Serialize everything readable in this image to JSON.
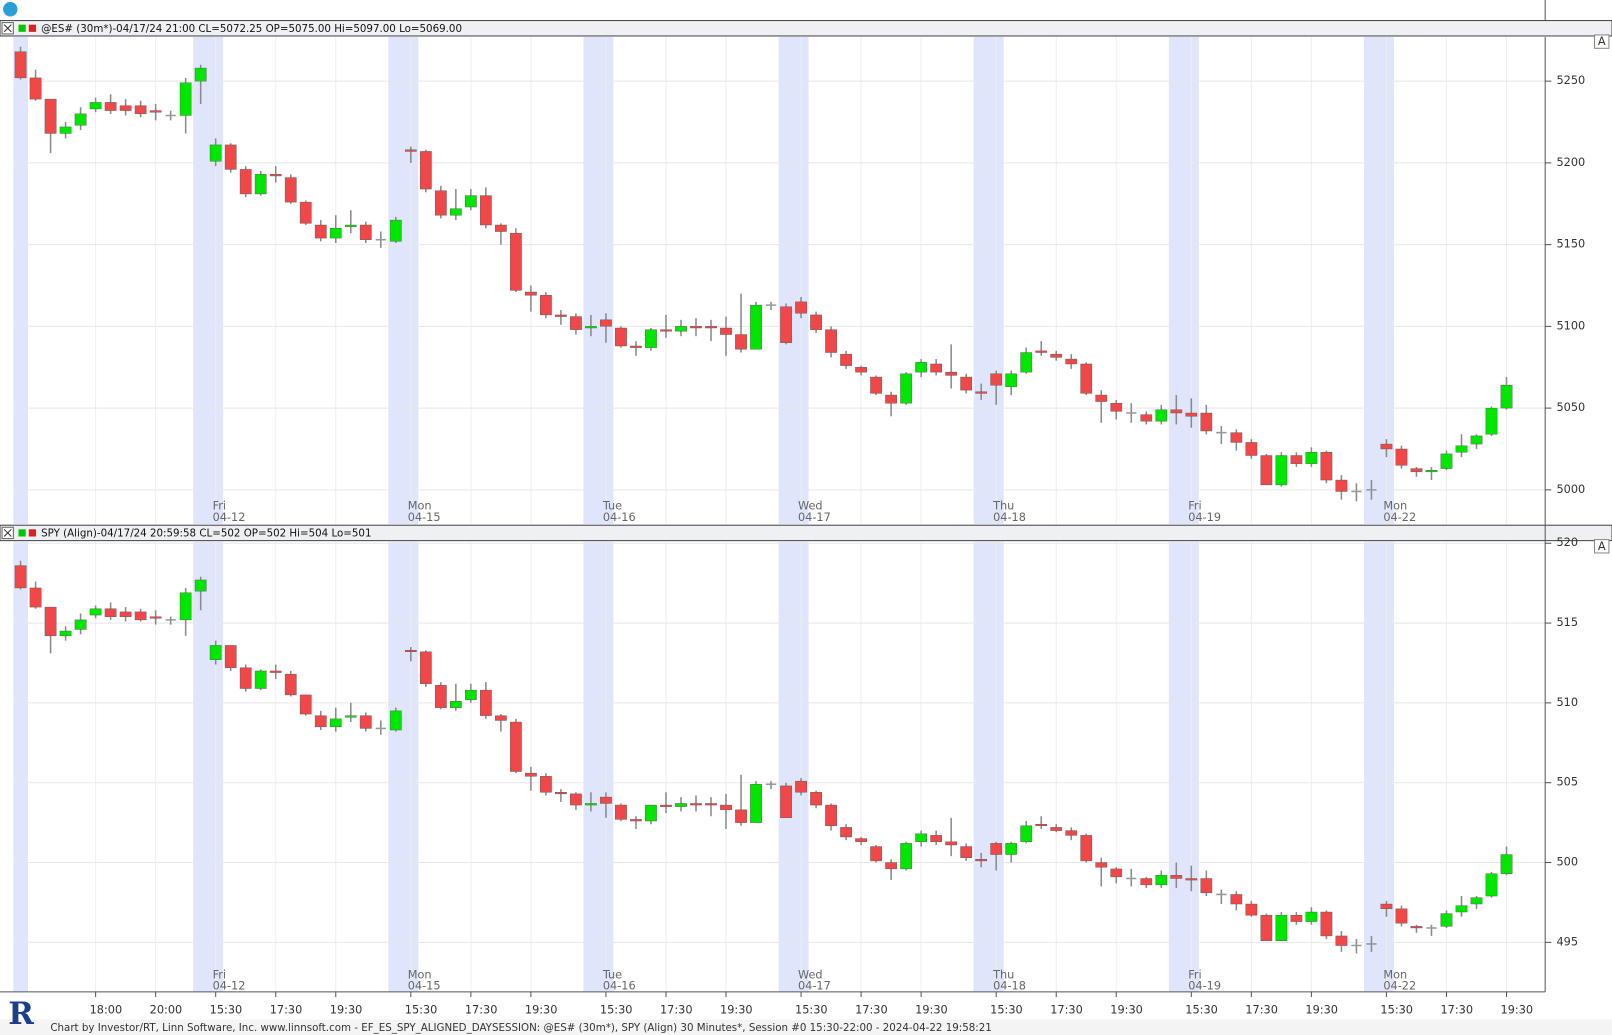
{
  "button_label": "A",
  "footer": "Chart by Investor/RT, Linn Software, Inc. www.linnsoft.com - EF_ES_SPY_ALIGNED_DAYSESSION: @ES# (30m*), SPY (Align) 30 Minutes*, Session #0 15:30-22:00 - 2024-04-22 19:58:21",
  "chart_data": [
    {
      "type": "candlestick",
      "title": "@ES# (30m*)-04/17/24 21:00 CL=5072.25 OP=5075.00 Hi=5097.00 Lo=5069.00",
      "up_color": "#00e600",
      "down_color": "#f04848",
      "doji_color": "#999999",
      "band_color": "#dfe6fb",
      "grid": true,
      "ylim": [
        4979,
        5277
      ],
      "yticks": [
        5000,
        5050,
        5100,
        5150,
        5200,
        5250
      ],
      "weekdays": [
        null,
        null,
        null,
        null,
        null,
        null,
        null,
        null,
        null,
        null,
        null,
        null,
        null,
        "Fri",
        null,
        null,
        null,
        null,
        null,
        null,
        null,
        null,
        null,
        null,
        null,
        null,
        "Mon",
        null,
        null,
        null,
        null,
        null,
        null,
        null,
        null,
        null,
        null,
        null,
        null,
        "Tue",
        null,
        null,
        null,
        null,
        null,
        null,
        null,
        null,
        null,
        null,
        null,
        null,
        "Wed",
        null,
        null,
        null,
        null,
        null,
        null,
        null,
        null,
        null,
        null,
        null,
        null,
        "Thu",
        null,
        null,
        null,
        null,
        null,
        null,
        null,
        null,
        null,
        null,
        null,
        null,
        "Fri",
        null,
        null,
        null,
        null,
        null,
        null,
        null,
        null,
        null,
        null,
        null,
        null,
        "Mon",
        null,
        null,
        null,
        null,
        null,
        null,
        null,
        null
      ],
      "dates": [
        null,
        null,
        null,
        null,
        null,
        null,
        null,
        null,
        null,
        null,
        null,
        null,
        null,
        "04-12",
        null,
        null,
        null,
        null,
        null,
        null,
        null,
        null,
        null,
        null,
        null,
        null,
        "04-15",
        null,
        null,
        null,
        null,
        null,
        null,
        null,
        null,
        null,
        null,
        null,
        null,
        "04-16",
        null,
        null,
        null,
        null,
        null,
        null,
        null,
        null,
        null,
        null,
        null,
        null,
        "04-17",
        null,
        null,
        null,
        null,
        null,
        null,
        null,
        null,
        null,
        null,
        null,
        null,
        "04-18",
        null,
        null,
        null,
        null,
        null,
        null,
        null,
        null,
        null,
        null,
        null,
        null,
        "04-19",
        null,
        null,
        null,
        null,
        null,
        null,
        null,
        null,
        null,
        null,
        null,
        null,
        "04-22",
        null,
        null,
        null,
        null,
        null,
        null,
        null,
        null
      ],
      "open": [
        5268,
        5252,
        5239,
        5218,
        5223,
        5233,
        5237,
        5235,
        5235,
        5232,
        5229,
        5229,
        5250,
        5201,
        5211,
        5196,
        5181,
        5193,
        5191,
        5176,
        5162,
        5154,
        5161,
        5162,
        5153,
        5152,
        5208,
        5207,
        5183,
        5168,
        5173,
        5180,
        5162,
        5157,
        5121,
        5119,
        5107,
        5106,
        5099,
        5104,
        5099,
        5088,
        5087,
        5098,
        5097,
        5100,
        5100,
        5099,
        5095,
        5086,
        5113,
        5112,
        5115,
        5107,
        5098,
        5083,
        5075,
        5069,
        5058,
        5053,
        5072,
        5077,
        5072,
        5069,
        5060,
        5071,
        5063,
        5072,
        5085,
        5083,
        5080,
        5077,
        5058,
        5053,
        5047,
        5046,
        5042,
        5049,
        5047,
        5047,
        5035,
        5035,
        5029,
        5021,
        5003,
        5021,
        5016,
        5023,
        5006,
        4999,
        5000,
        5028,
        5025,
        5013,
        5011,
        5013,
        5023,
        5028,
        5034,
        5050
      ],
      "high": [
        5271,
        5257,
        5239,
        5225,
        5234,
        5240,
        5242,
        5239,
        5238,
        5236,
        5232,
        5252,
        5260,
        5215,
        5212,
        5198,
        5195,
        5198,
        5193,
        5177,
        5165,
        5168,
        5171,
        5164,
        5158,
        5167,
        5210,
        5208,
        5186,
        5184,
        5184,
        5185,
        5163,
        5160,
        5125,
        5121,
        5110,
        5108,
        5107,
        5108,
        5100,
        5091,
        5099,
        5107,
        5104,
        5105,
        5104,
        5106,
        5120,
        5115,
        5115,
        5114,
        5118,
        5109,
        5100,
        5085,
        5076,
        5070,
        5060,
        5072,
        5080,
        5080,
        5089,
        5071,
        5065,
        5073,
        5073,
        5087,
        5091,
        5085,
        5083,
        5078,
        5061,
        5055,
        5053,
        5048,
        5052,
        5058,
        5056,
        5052,
        5039,
        5037,
        5031,
        5022,
        5023,
        5023,
        5026,
        5024,
        5009,
        5004,
        5006,
        5031,
        5027,
        5014,
        5014,
        5024,
        5034,
        5034,
        5051,
        5069
      ],
      "low": [
        5251,
        5238,
        5206,
        5215,
        5220,
        5231,
        5230,
        5229,
        5228,
        5226,
        5226,
        5218,
        5236,
        5198,
        5194,
        5179,
        5180,
        5188,
        5175,
        5162,
        5152,
        5151,
        5157,
        5151,
        5148,
        5151,
        5200,
        5182,
        5166,
        5165,
        5171,
        5160,
        5150,
        5121,
        5109,
        5105,
        5101,
        5095,
        5094,
        5090,
        5087,
        5082,
        5085,
        5093,
        5094,
        5094,
        5091,
        5082,
        5084,
        5086,
        5110,
        5089,
        5105,
        5096,
        5081,
        5074,
        5070,
        5058,
        5045,
        5052,
        5069,
        5070,
        5062,
        5059,
        5055,
        5052,
        5058,
        5071,
        5082,
        5079,
        5074,
        5058,
        5041,
        5043,
        5041,
        5040,
        5040,
        5040,
        5038,
        5034,
        5028,
        5024,
        5019,
        5003,
        5002,
        5014,
        5014,
        5004,
        4994,
        4993,
        4994,
        5020,
        5013,
        5008,
        5006,
        5012,
        5020,
        5025,
        5033,
        5049
      ],
      "close": [
        5252,
        5239,
        5218,
        5222,
        5230,
        5237,
        5232,
        5232,
        5230,
        5231,
        5229,
        5249,
        5258,
        5211,
        5196,
        5181,
        5193,
        5192,
        5176,
        5163,
        5154,
        5160,
        5162,
        5153,
        5153,
        5165,
        5207,
        5184,
        5168,
        5172,
        5180,
        5162,
        5158,
        5122,
        5119,
        5107,
        5106,
        5098,
        5100,
        5100,
        5088,
        5087,
        5098,
        5097,
        5100,
        5099,
        5099,
        5095,
        5086,
        5113,
        5113,
        5090,
        5108,
        5098,
        5084,
        5076,
        5072,
        5059,
        5053,
        5071,
        5078,
        5072,
        5070,
        5061,
        5059,
        5064,
        5071,
        5084,
        5084,
        5081,
        5077,
        5059,
        5054,
        5048,
        5047,
        5042,
        5049,
        5047,
        5045,
        5036,
        5035,
        5029,
        5021,
        5003,
        5021,
        5016,
        5023,
        5006,
        4999,
        4999,
        5000,
        5025,
        5015,
        5011,
        5012,
        5022,
        5027,
        5033,
        5050,
        5064
      ]
    },
    {
      "type": "candlestick",
      "title": "SPY (Align)-04/17/24 20:59:58 CL=502 OP=502 Hi=504 Lo=501",
      "up_color": "#00e600",
      "down_color": "#f04848",
      "doji_color": "#999999",
      "band_color": "#dfe6fb",
      "grid": true,
      "ylim": [
        491.9,
        520.1
      ],
      "yticks": [
        495,
        500,
        505,
        510,
        515,
        520
      ],
      "categories": [
        null,
        null,
        null,
        null,
        null,
        "18:00",
        null,
        null,
        null,
        "20:00",
        null,
        null,
        null,
        "15:30",
        null,
        null,
        null,
        "17:30",
        null,
        null,
        null,
        "19:30",
        null,
        null,
        null,
        null,
        "15:30",
        null,
        null,
        null,
        "17:30",
        null,
        null,
        null,
        "19:30",
        null,
        null,
        null,
        null,
        "15:30",
        null,
        null,
        null,
        "17:30",
        null,
        null,
        null,
        "19:30",
        null,
        null,
        null,
        null,
        "15:30",
        null,
        null,
        null,
        "17:30",
        null,
        null,
        null,
        "19:30",
        null,
        null,
        null,
        null,
        "15:30",
        null,
        null,
        null,
        "17:30",
        null,
        null,
        null,
        "19:30",
        null,
        null,
        null,
        null,
        "15:30",
        null,
        null,
        null,
        "17:30",
        null,
        null,
        null,
        "19:30",
        null,
        null,
        null,
        null,
        "15:30",
        null,
        null,
        null,
        "17:30",
        null,
        null,
        null,
        "19:30"
      ],
      "open": [
        518.6,
        517.2,
        516.0,
        514.2,
        514.6,
        515.5,
        515.9,
        515.7,
        515.7,
        515.4,
        515.2,
        515.2,
        517.0,
        512.7,
        513.6,
        512.2,
        510.9,
        512.0,
        511.8,
        510.5,
        509.2,
        508.5,
        509.1,
        509.2,
        508.4,
        508.3,
        513.3,
        513.2,
        511.1,
        509.7,
        510.2,
        510.8,
        509.2,
        508.8,
        505.6,
        505.4,
        504.4,
        504.3,
        503.6,
        504.1,
        503.6,
        502.7,
        502.6,
        503.6,
        503.5,
        503.7,
        503.7,
        503.6,
        503.3,
        502.5,
        504.9,
        504.8,
        505.1,
        504.4,
        503.6,
        502.2,
        501.5,
        501.0,
        500.0,
        499.6,
        501.3,
        501.7,
        501.3,
        501.0,
        500.2,
        501.2,
        500.5,
        501.3,
        502.4,
        502.2,
        502.0,
        501.7,
        500.0,
        499.6,
        499.0,
        499.0,
        498.6,
        499.2,
        499.0,
        499.0,
        498.0,
        498.0,
        497.4,
        496.7,
        495.1,
        496.7,
        496.3,
        496.9,
        495.4,
        494.8,
        494.9,
        497.4,
        497.1,
        496.0,
        495.9,
        496.0,
        496.9,
        497.4,
        497.9,
        499.3
      ],
      "high": [
        518.9,
        517.6,
        516.0,
        514.8,
        515.6,
        516.1,
        516.3,
        516.0,
        515.9,
        515.8,
        515.4,
        517.2,
        517.9,
        513.9,
        513.6,
        512.4,
        512.1,
        512.4,
        512.0,
        510.5,
        509.5,
        509.7,
        510.0,
        509.4,
        508.9,
        509.7,
        513.5,
        513.3,
        511.3,
        511.2,
        511.2,
        511.3,
        509.3,
        509.0,
        506.0,
        505.6,
        504.6,
        504.4,
        504.4,
        504.4,
        503.7,
        502.9,
        503.6,
        504.4,
        504.1,
        504.2,
        504.1,
        504.3,
        505.5,
        505.1,
        505.1,
        505.0,
        505.3,
        504.5,
        503.7,
        502.4,
        501.6,
        501.1,
        500.2,
        501.3,
        502.0,
        502.0,
        502.8,
        501.2,
        500.6,
        501.3,
        501.3,
        502.6,
        502.9,
        502.4,
        502.2,
        501.8,
        500.3,
        499.7,
        499.6,
        499.1,
        499.5,
        500.0,
        499.8,
        499.5,
        498.3,
        498.2,
        497.6,
        496.8,
        496.9,
        496.9,
        497.2,
        497.0,
        495.7,
        495.2,
        495.4,
        497.6,
        497.3,
        496.1,
        496.1,
        497.0,
        497.9,
        497.9,
        499.4,
        501.0
      ],
      "low": [
        517.1,
        515.9,
        513.1,
        513.9,
        514.3,
        515.3,
        515.2,
        515.1,
        515.1,
        514.9,
        514.9,
        514.2,
        515.8,
        512.4,
        512.0,
        510.7,
        510.8,
        511.5,
        510.4,
        509.2,
        508.3,
        508.2,
        508.8,
        508.2,
        508.0,
        508.2,
        512.6,
        511.0,
        509.6,
        509.5,
        510.0,
        509.0,
        508.2,
        505.6,
        504.5,
        504.2,
        503.8,
        503.3,
        503.2,
        502.8,
        502.6,
        502.1,
        502.4,
        503.1,
        503.2,
        503.2,
        502.9,
        502.1,
        502.3,
        502.5,
        504.6,
        502.8,
        504.2,
        503.4,
        502.0,
        501.4,
        501.1,
        500.0,
        498.9,
        499.5,
        501.0,
        501.1,
        500.4,
        500.1,
        499.7,
        499.5,
        500.0,
        501.2,
        502.1,
        501.9,
        501.4,
        500.0,
        498.5,
        498.7,
        498.5,
        498.4,
        498.4,
        498.4,
        498.2,
        497.9,
        497.4,
        497.0,
        496.6,
        495.1,
        495.1,
        496.1,
        496.1,
        495.2,
        494.4,
        494.3,
        494.4,
        496.6,
        496.0,
        495.6,
        495.4,
        495.9,
        496.6,
        497.1,
        497.8,
        499.2
      ],
      "close": [
        517.2,
        516.0,
        514.2,
        514.5,
        515.2,
        515.9,
        515.4,
        515.4,
        515.2,
        515.3,
        515.2,
        516.9,
        517.7,
        513.6,
        512.2,
        510.9,
        512.0,
        511.9,
        510.5,
        509.3,
        508.5,
        509.0,
        509.2,
        508.4,
        508.4,
        509.5,
        513.2,
        511.2,
        509.7,
        510.1,
        510.8,
        509.2,
        508.9,
        505.7,
        505.4,
        504.4,
        504.3,
        503.6,
        503.7,
        503.7,
        502.7,
        502.6,
        503.6,
        503.5,
        503.7,
        503.6,
        503.6,
        503.3,
        502.5,
        504.9,
        504.9,
        502.8,
        504.4,
        503.6,
        502.3,
        501.6,
        501.3,
        500.1,
        499.6,
        501.2,
        501.8,
        501.3,
        501.1,
        500.3,
        500.1,
        500.5,
        501.2,
        502.3,
        502.3,
        502.0,
        501.7,
        500.1,
        499.7,
        499.1,
        499.0,
        498.6,
        499.2,
        499.0,
        498.9,
        498.1,
        498.0,
        497.4,
        496.7,
        495.1,
        496.7,
        496.3,
        496.9,
        495.4,
        494.8,
        494.8,
        494.9,
        497.1,
        496.2,
        495.9,
        495.9,
        496.8,
        497.3,
        497.8,
        499.3,
        500.5
      ]
    }
  ]
}
